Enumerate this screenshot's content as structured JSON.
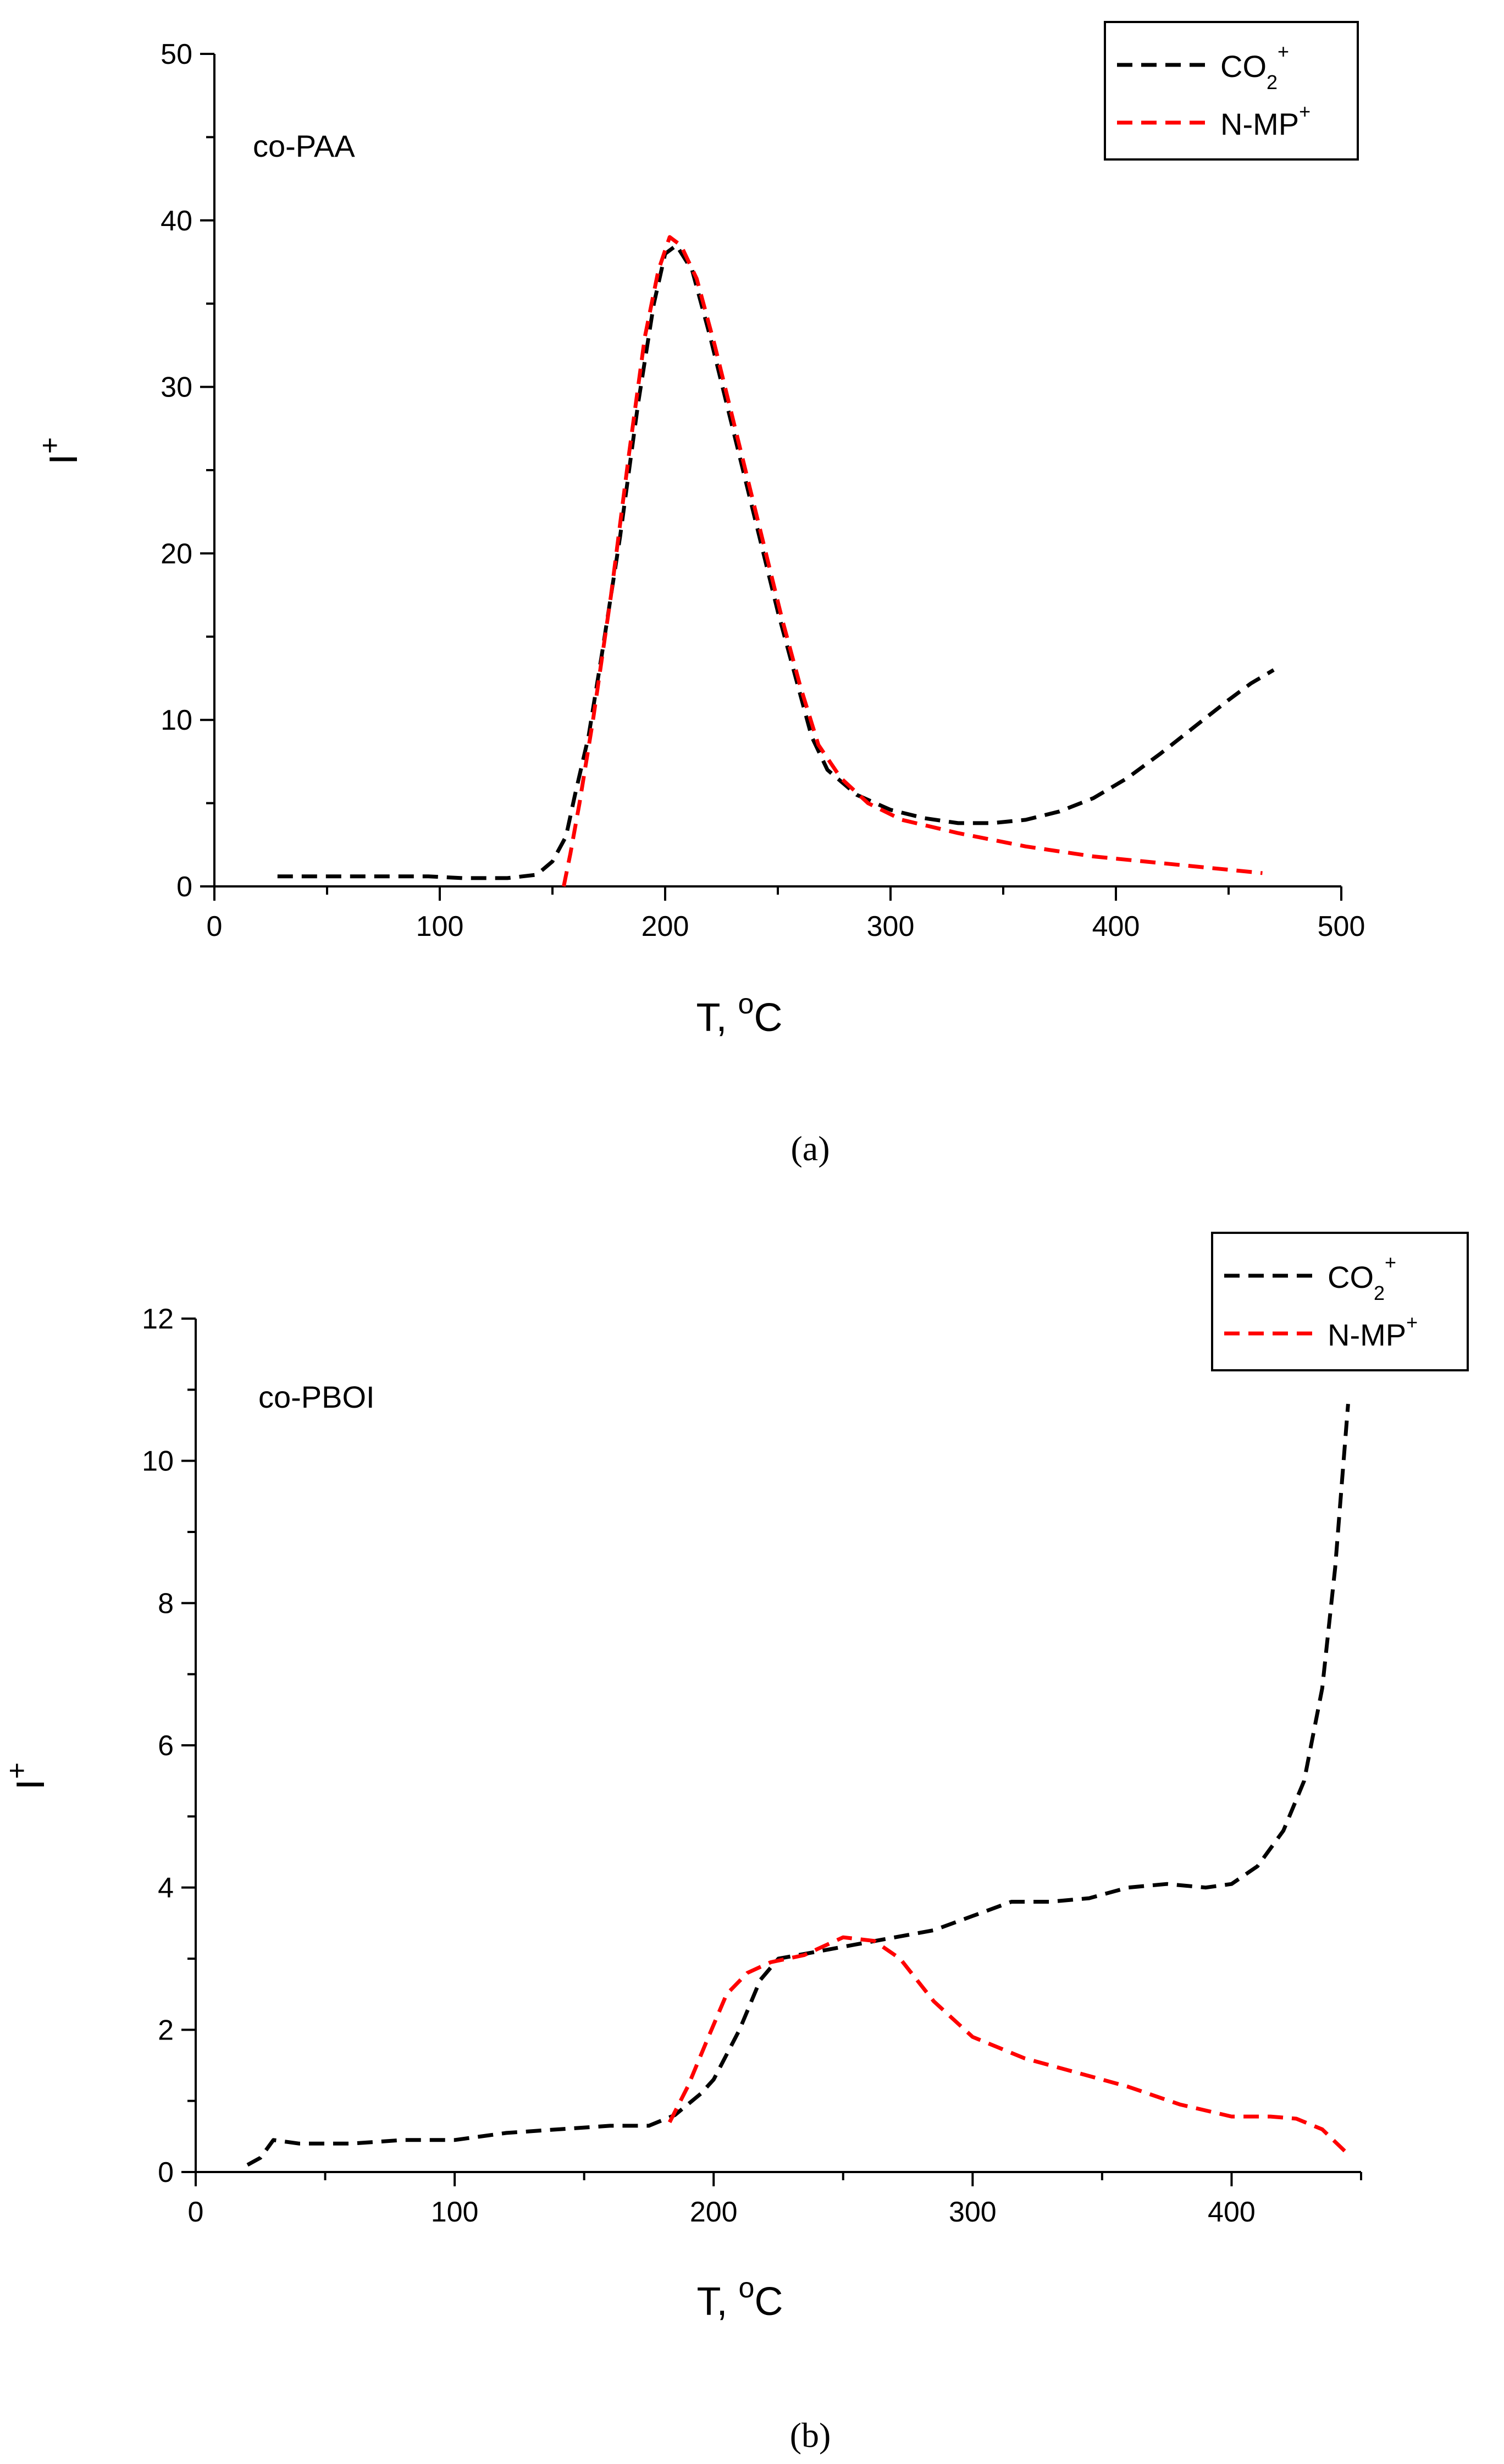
{
  "chart_data": [
    {
      "panel": "a",
      "type": "line",
      "caption": "(a)",
      "annotation": "co-PAA",
      "xlabel": {
        "main": "T, ",
        "sup": "o",
        "unit": "C"
      },
      "ylabel": {
        "main": "I",
        "sup": "+"
      },
      "xlim": [
        0,
        500
      ],
      "ylim": [
        0,
        50
      ],
      "xticks": [
        0,
        100,
        200,
        300,
        400,
        500
      ],
      "yticks": [
        0,
        10,
        20,
        30,
        40,
        50
      ],
      "legend_position": "top-right",
      "series": [
        {
          "name": "CO2+",
          "label_main": "CO",
          "label_sub": "2",
          "label_sup": "+",
          "color": "#000000",
          "points": [
            [
              28,
              0.6
            ],
            [
              60,
              0.6
            ],
            [
              95,
              0.6
            ],
            [
              110,
              0.5
            ],
            [
              130,
              0.5
            ],
            [
              143,
              0.7
            ],
            [
              150,
              1.5
            ],
            [
              156,
              3.0
            ],
            [
              160,
              5.5
            ],
            [
              166,
              9.0
            ],
            [
              172,
              14.0
            ],
            [
              180,
              21.0
            ],
            [
              188,
              29.0
            ],
            [
              195,
              35.0
            ],
            [
              200,
              38.0
            ],
            [
              205,
              38.5
            ],
            [
              212,
              37.0
            ],
            [
              220,
              33.0
            ],
            [
              230,
              27.5
            ],
            [
              240,
              22.0
            ],
            [
              250,
              16.5
            ],
            [
              258,
              12.5
            ],
            [
              265,
              9.0
            ],
            [
              272,
              7.0
            ],
            [
              285,
              5.5
            ],
            [
              300,
              4.6
            ],
            [
              315,
              4.1
            ],
            [
              330,
              3.8
            ],
            [
              345,
              3.8
            ],
            [
              360,
              4.0
            ],
            [
              375,
              4.5
            ],
            [
              390,
              5.3
            ],
            [
              405,
              6.5
            ],
            [
              420,
              8.0
            ],
            [
              435,
              9.6
            ],
            [
              450,
              11.2
            ],
            [
              460,
              12.2
            ],
            [
              470,
              13.0
            ]
          ]
        },
        {
          "name": "N-MP+",
          "label_main": "N-MP",
          "label_sub": "",
          "label_sup": "+",
          "color": "#ff0000",
          "points": [
            [
              155,
              0.0
            ],
            [
              158,
              2.0
            ],
            [
              162,
              5.0
            ],
            [
              168,
              10.0
            ],
            [
              176,
              17.5
            ],
            [
              184,
              26.0
            ],
            [
              191,
              33.0
            ],
            [
              197,
              37.0
            ],
            [
              202,
              39.0
            ],
            [
              207,
              38.5
            ],
            [
              214,
              36.5
            ],
            [
              222,
              32.5
            ],
            [
              232,
              27.0
            ],
            [
              242,
              21.5
            ],
            [
              252,
              16.0
            ],
            [
              260,
              12.0
            ],
            [
              268,
              8.5
            ],
            [
              278,
              6.5
            ],
            [
              290,
              5.0
            ],
            [
              305,
              4.0
            ],
            [
              330,
              3.2
            ],
            [
              360,
              2.4
            ],
            [
              390,
              1.8
            ],
            [
              420,
              1.4
            ],
            [
              450,
              1.0
            ],
            [
              465,
              0.8
            ]
          ]
        }
      ]
    },
    {
      "panel": "b",
      "type": "line",
      "caption": "(b)",
      "annotation": "co-PBOI",
      "xlabel": {
        "main": "T, ",
        "sup": "o",
        "unit": "C"
      },
      "ylabel": {
        "main": "I",
        "sup": "+"
      },
      "xlim": [
        0,
        450
      ],
      "ylim": [
        0,
        12
      ],
      "xticks": [
        0,
        100,
        200,
        300,
        400
      ],
      "yticks": [
        0,
        2,
        4,
        6,
        8,
        10,
        12
      ],
      "legend_position": "top-right",
      "series": [
        {
          "name": "CO2+",
          "label_main": "CO",
          "label_sub": "2",
          "label_sup": "+",
          "color": "#000000",
          "points": [
            [
              20,
              0.1
            ],
            [
              25,
              0.2
            ],
            [
              30,
              0.45
            ],
            [
              40,
              0.4
            ],
            [
              60,
              0.4
            ],
            [
              80,
              0.45
            ],
            [
              100,
              0.45
            ],
            [
              120,
              0.55
            ],
            [
              140,
              0.6
            ],
            [
              160,
              0.65
            ],
            [
              175,
              0.65
            ],
            [
              185,
              0.8
            ],
            [
              195,
              1.1
            ],
            [
              200,
              1.3
            ],
            [
              210,
              2.0
            ],
            [
              218,
              2.7
            ],
            [
              225,
              3.0
            ],
            [
              240,
              3.1
            ],
            [
              255,
              3.2
            ],
            [
              270,
              3.3
            ],
            [
              285,
              3.4
            ],
            [
              300,
              3.6
            ],
            [
              315,
              3.8
            ],
            [
              330,
              3.8
            ],
            [
              345,
              3.85
            ],
            [
              360,
              4.0
            ],
            [
              375,
              4.05
            ],
            [
              390,
              4.0
            ],
            [
              400,
              4.05
            ],
            [
              410,
              4.3
            ],
            [
              420,
              4.8
            ],
            [
              428,
              5.5
            ],
            [
              435,
              6.8
            ],
            [
              440,
              8.5
            ],
            [
              445,
              10.8
            ]
          ]
        },
        {
          "name": "N-MP+",
          "label_main": "N-MP",
          "label_sub": "",
          "label_sup": "+",
          "color": "#ff0000",
          "points": [
            [
              183,
              0.7
            ],
            [
              190,
              1.2
            ],
            [
              198,
              1.9
            ],
            [
              205,
              2.5
            ],
            [
              213,
              2.8
            ],
            [
              222,
              2.95
            ],
            [
              235,
              3.05
            ],
            [
              250,
              3.3
            ],
            [
              262,
              3.25
            ],
            [
              272,
              3.0
            ],
            [
              285,
              2.4
            ],
            [
              300,
              1.9
            ],
            [
              320,
              1.6
            ],
            [
              340,
              1.4
            ],
            [
              360,
              1.2
            ],
            [
              380,
              0.95
            ],
            [
              400,
              0.78
            ],
            [
              415,
              0.78
            ],
            [
              425,
              0.75
            ],
            [
              435,
              0.6
            ],
            [
              445,
              0.25
            ]
          ]
        }
      ]
    }
  ]
}
